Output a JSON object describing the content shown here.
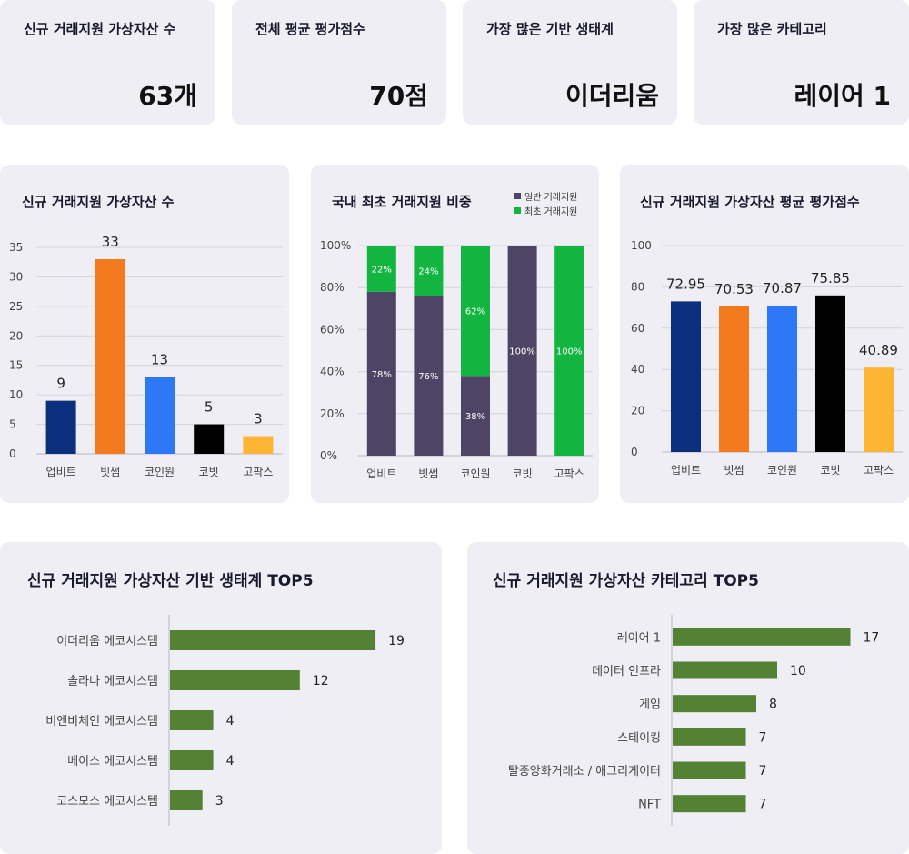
{
  "kpis": [
    {
      "label": "신규 거래지원 가상자산 수",
      "value": "63개"
    },
    {
      "label": "전체 평균 평가점수",
      "value": "70점"
    },
    {
      "label": "가장 많은 기반 생태계",
      "value": "이더리움"
    },
    {
      "label": "가장 많은 카테고리",
      "value": "레이어 1"
    }
  ],
  "colors": {
    "card_bg": "#efeef4",
    "exchanges": [
      "#0b2f7d",
      "#f47a20",
      "#2e78f7",
      "#000000",
      "#fdb533"
    ],
    "general": "#4e4466",
    "first": "#12b540",
    "hbar": "#548235"
  },
  "chart_data": [
    {
      "id": "new-listings",
      "type": "bar",
      "title": "신규 거래지원 가상자산 수",
      "categories": [
        "업비트",
        "빗썸",
        "코인원",
        "코빗",
        "고팍스"
      ],
      "values": [
        9,
        33,
        13,
        5,
        3
      ],
      "ylim": [
        0,
        35
      ],
      "yticks": [
        "0",
        "5",
        "10",
        "15",
        "20",
        "25",
        "30",
        "35"
      ],
      "grid": true
    },
    {
      "id": "first-listing-share",
      "type": "bar",
      "stacked": true,
      "title": "국내 최초 거래지원 비중",
      "categories": [
        "업비트",
        "빗썸",
        "코인원",
        "코빗",
        "고팍스"
      ],
      "series": [
        {
          "name": "일반 거래지원",
          "values": [
            78,
            76,
            38,
            100,
            0
          ],
          "labels": [
            "78%",
            "76%",
            "38%",
            "100%",
            ""
          ]
        },
        {
          "name": "최초 거래지원",
          "values": [
            22,
            24,
            62,
            0,
            100
          ],
          "labels": [
            "22%",
            "24%",
            "62%",
            "",
            "100%"
          ]
        }
      ],
      "ylim": [
        0,
        100
      ],
      "yticks": [
        "0%",
        "20%",
        "40%",
        "60%",
        "80%",
        "100%"
      ],
      "legend": "top-right",
      "grid": true
    },
    {
      "id": "avg-score",
      "type": "bar",
      "title": "신규 거래지원 가상자산 평균 평가점수",
      "categories": [
        "업비트",
        "빗썸",
        "코인원",
        "코빗",
        "고팍스"
      ],
      "values": [
        72.95,
        70.53,
        70.87,
        75.85,
        40.89
      ],
      "value_labels": [
        "72.95",
        "70.53",
        "70.87",
        "75.85",
        "40.89"
      ],
      "ylim": [
        0,
        100
      ],
      "yticks": [
        "0",
        "20",
        "40",
        "60",
        "80",
        "100"
      ],
      "grid": true
    },
    {
      "id": "ecosystem-top5",
      "type": "bar",
      "orientation": "horizontal",
      "title": "신규 거래지원 가상자산 기반 생태계 TOP5",
      "categories": [
        "이더리움 에코시스템",
        "솔라나 에코시스템",
        "비엔비체인 에코시스템",
        "베이스 에코시스템",
        "코스모스 에코시스템"
      ],
      "values": [
        19,
        12,
        4,
        4,
        3
      ]
    },
    {
      "id": "category-top5",
      "type": "bar",
      "orientation": "horizontal",
      "title": "신규 거래지원 가상자산 카테고리 TOP5",
      "categories": [
        "레이어 1",
        "데이터 인프라",
        "게임",
        "스테이킹",
        "탈중앙화거래소 / 애그리게이터",
        "NFT"
      ],
      "values": [
        17,
        10,
        8,
        7,
        7,
        7
      ]
    }
  ]
}
